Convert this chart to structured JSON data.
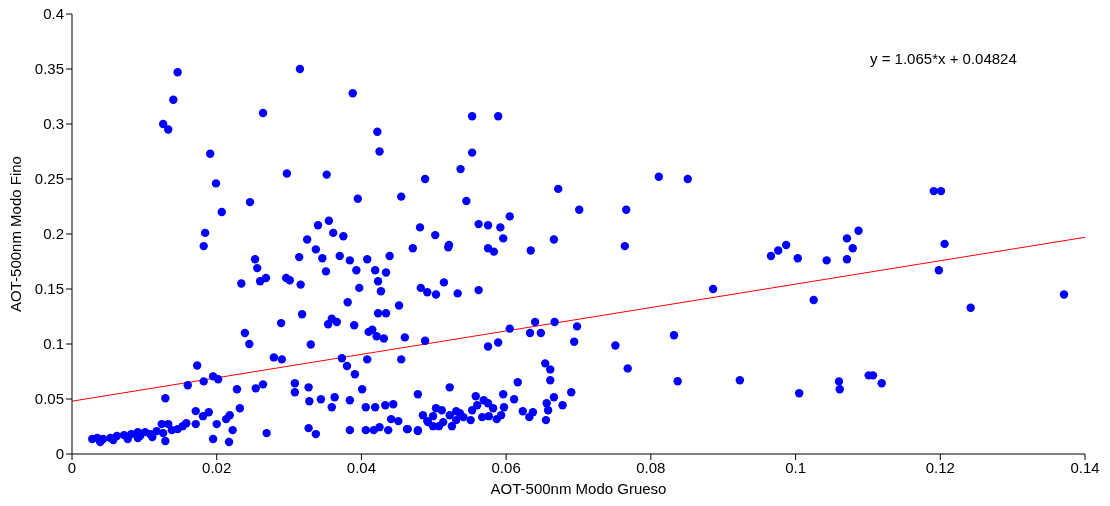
{
  "chart_data": {
    "type": "scatter",
    "xlabel": "AOT-500nm Modo Grueso",
    "ylabel": "AOT-500nm Modo Fino",
    "annotations": [
      "y = 1.065*x + 0.04824"
    ],
    "xlim": [
      0,
      0.14
    ],
    "xticks": [
      0,
      0.02,
      0.04,
      0.06,
      0.08,
      0.1,
      0.12,
      0.14
    ],
    "ylim": [
      0,
      0.4
    ],
    "yticks": [
      0,
      0.05,
      0.1,
      0.15,
      0.2,
      0.25,
      0.3,
      0.35,
      0.4
    ],
    "grid": false,
    "legend": false,
    "series": [
      {
        "color": "#0000ff",
        "marker": "circle",
        "x": [
          0.0146,
          0.014,
          0.0126,
          0.0133,
          0.0191,
          0.0199,
          0.0207,
          0.0184,
          0.0182,
          0.0246,
          0.0315,
          0.0264,
          0.0388,
          0.0422,
          0.0425,
          0.0297,
          0.0352,
          0.0395,
          0.0455,
          0.0488,
          0.0553,
          0.0589,
          0.0553,
          0.0537,
          0.0545,
          0.0481,
          0.0502,
          0.0471,
          0.052,
          0.0521,
          0.0562,
          0.0575,
          0.0592,
          0.0605,
          0.0596,
          0.0575,
          0.0583,
          0.0634,
          0.0666,
          0.0672,
          0.0701,
          0.0766,
          0.0764,
          0.0811,
          0.0851,
          0.034,
          0.0355,
          0.0361,
          0.0375,
          0.0325,
          0.0337,
          0.0314,
          0.0346,
          0.037,
          0.0384,
          0.0408,
          0.0439,
          0.0393,
          0.0351,
          0.0419,
          0.0434,
          0.0423,
          0.0427,
          0.0397,
          0.0253,
          0.0256,
          0.026,
          0.0268,
          0.0234,
          0.0296,
          0.0301,
          0.0316,
          0.0381,
          0.0318,
          0.0452,
          0.0423,
          0.0434,
          0.0354,
          0.0359,
          0.0366,
          0.0289,
          0.039,
          0.041,
          0.0415,
          0.0421,
          0.0431,
          0.046,
          0.0488,
          0.0239,
          0.0245,
          0.033,
          0.0279,
          0.029,
          0.0373,
          0.0408,
          0.0455,
          0.038,
          0.0391,
          0.0173,
          0.0182,
          0.0195,
          0.0202,
          0.016,
          0.0129,
          0.0228,
          0.0254,
          0.0264,
          0.0308,
          0.0308,
          0.0327,
          0.0328,
          0.0344,
          0.0363,
          0.0359,
          0.0384,
          0.0401,
          0.0406,
          0.0419,
          0.0433,
          0.0444,
          0.0478,
          0.0485,
          0.0171,
          0.0189,
          0.0181,
          0.0171,
          0.0158,
          0.0213,
          0.0218,
          0.0232,
          0.0222,
          0.02,
          0.0195,
          0.0217,
          0.0269,
          0.0327,
          0.0337,
          0.0384,
          0.0406,
          0.0417,
          0.0425,
          0.0437,
          0.0441,
          0.0451,
          0.0464,
          0.0478,
          0.0491,
          0.0028,
          0.0035,
          0.0043,
          0.0053,
          0.0062,
          0.0072,
          0.0082,
          0.0091,
          0.0101,
          0.0108,
          0.0117,
          0.0126,
          0.0129,
          0.0138,
          0.0146,
          0.0153,
          0.0039,
          0.0057,
          0.0077,
          0.0094,
          0.0111,
          0.0124,
          0.0133,
          0.0091,
          0.0482,
          0.0491,
          0.0503,
          0.0514,
          0.0533,
          0.0562,
          0.0886,
          0.0575,
          0.0589,
          0.0605,
          0.0633,
          0.064,
          0.0648,
          0.0667,
          0.0698,
          0.0694,
          0.0751,
          0.0832,
          0.0768,
          0.0837,
          0.0923,
          0.0654,
          0.0661,
          0.0661,
          0.0616,
          0.0522,
          0.069,
          0.0666,
          0.0596,
          0.0611,
          0.0558,
          0.0569,
          0.0575,
          0.0597,
          0.0582,
          0.056,
          0.0553,
          0.0656,
          0.0678,
          0.0658,
          0.0623,
          0.0637,
          0.0632,
          0.0655,
          0.0503,
          0.0511,
          0.0499,
          0.0522,
          0.0531,
          0.0536,
          0.0541,
          0.0551,
          0.0567,
          0.0576,
          0.0587,
          0.0593,
          0.0492,
          0.0499,
          0.0507,
          0.0513,
          0.0525,
          0.0531,
          0.0463,
          0.0478,
          0.1191,
          0.1201,
          0.1206,
          0.1198,
          0.1242,
          0.1371,
          0.0966,
          0.0976,
          0.0987,
          0.1003,
          0.1025,
          0.1043,
          0.1071,
          0.1079,
          0.1087,
          0.1071,
          0.1005,
          0.106,
          0.1061,
          0.1101,
          0.1107,
          0.1119
        ],
        "values": [
          0.347,
          0.322,
          0.3,
          0.295,
          0.273,
          0.246,
          0.22,
          0.201,
          0.189,
          0.229,
          0.35,
          0.31,
          0.328,
          0.293,
          0.275,
          0.255,
          0.254,
          0.232,
          0.234,
          0.25,
          0.307,
          0.307,
          0.274,
          0.259,
          0.23,
          0.206,
          0.199,
          0.187,
          0.188,
          0.19,
          0.209,
          0.208,
          0.206,
          0.216,
          0.196,
          0.187,
          0.184,
          0.185,
          0.195,
          0.241,
          0.222,
          0.222,
          0.189,
          0.252,
          0.25,
          0.208,
          0.212,
          0.201,
          0.198,
          0.195,
          0.186,
          0.179,
          0.178,
          0.18,
          0.176,
          0.177,
          0.18,
          0.167,
          0.166,
          0.167,
          0.165,
          0.157,
          0.148,
          0.151,
          0.177,
          0.169,
          0.157,
          0.16,
          0.155,
          0.16,
          0.158,
          0.154,
          0.138,
          0.127,
          0.135,
          0.128,
          0.128,
          0.118,
          0.123,
          0.12,
          0.119,
          0.117,
          0.111,
          0.113,
          0.107,
          0.105,
          0.106,
          0.103,
          0.11,
          0.1,
          0.0995,
          0.0878,
          0.086,
          0.087,
          0.086,
          0.086,
          0.08,
          0.0725,
          0.0805,
          0.066,
          0.0706,
          0.068,
          0.0625,
          0.0507,
          0.0588,
          0.0597,
          0.0633,
          0.0643,
          0.0561,
          0.0606,
          0.048,
          0.0498,
          0.0516,
          0.0425,
          0.0489,
          0.0588,
          0.0425,
          0.0425,
          0.0443,
          0.0452,
          0.0543,
          0.0353,
          0.039,
          0.038,
          0.0344,
          0.0272,
          0.028,
          0.0317,
          0.0353,
          0.0416,
          0.0217,
          0.0272,
          0.0136,
          0.0109,
          0.019,
          0.0235,
          0.0181,
          0.0217,
          0.0217,
          0.0217,
          0.0244,
          0.0217,
          0.0317,
          0.0299,
          0.0226,
          0.0217,
          0.0299,
          0.0136,
          0.0145,
          0.0136,
          0.0145,
          0.0163,
          0.0172,
          0.0181,
          0.0199,
          0.0199,
          0.0181,
          0.0208,
          0.019,
          0.0118,
          0.0217,
          0.0226,
          0.0253,
          0.0109,
          0.0127,
          0.0136,
          0.0163,
          0.0154,
          0.0272,
          0.0272,
          0.0145,
          0.151,
          0.147,
          0.145,
          0.156,
          0.146,
          0.149,
          0.15,
          0.0977,
          0.1014,
          0.114,
          0.11,
          0.12,
          0.11,
          0.12,
          0.116,
          0.102,
          0.0986,
          0.108,
          0.0778,
          0.0661,
          0.067,
          0.0824,
          0.0769,
          0.067,
          0.0652,
          0.0606,
          0.0561,
          0.0516,
          0.0543,
          0.0498,
          0.0525,
          0.0489,
          0.0462,
          0.0425,
          0.0416,
          0.0443,
          0.0398,
          0.0462,
          0.0443,
          0.0398,
          0.0389,
          0.038,
          0.0335,
          0.0308,
          0.0416,
          0.0398,
          0.0344,
          0.0353,
          0.0389,
          0.0371,
          0.0335,
          0.0308,
          0.0335,
          0.0344,
          0.0317,
          0.0353,
          0.029,
          0.0253,
          0.0253,
          0.029,
          0.0253,
          0.0308,
          0.0226,
          0.0208,
          0.239,
          0.239,
          0.191,
          0.167,
          0.133,
          0.145,
          0.18,
          0.185,
          0.19,
          0.178,
          0.14,
          0.176,
          0.196,
          0.187,
          0.203,
          0.177,
          0.0552,
          0.066,
          0.0588,
          0.0715,
          0.0715,
          0.0643
        ]
      },
      {
        "type": "line",
        "color": "#ff0000",
        "marker": "none",
        "line_style": "solid",
        "x": [
          0,
          0.14
        ],
        "values": [
          0.048,
          0.197
        ]
      }
    ]
  }
}
